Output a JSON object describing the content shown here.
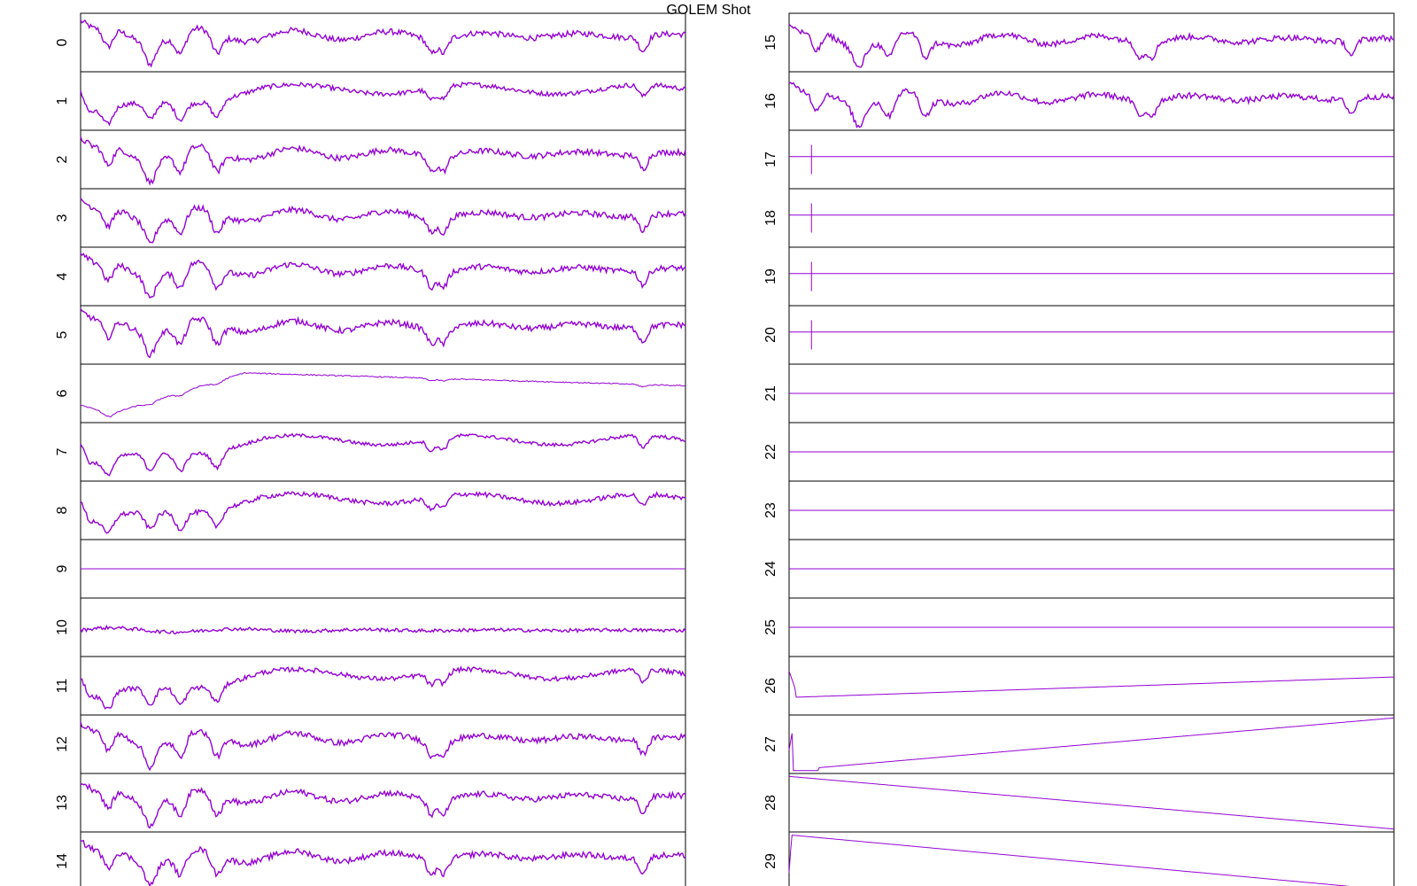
{
  "title": "GOLEM Shot",
  "series_color": "#9400d3",
  "chart_data": {
    "type": "line",
    "title": "GOLEM Shot",
    "grid": false,
    "legend": "none",
    "x_range": [
      0,
      100
    ],
    "y_range": [
      0,
      1
    ],
    "panels": [
      {
        "label": "0",
        "shape": "osc",
        "level": 0.62,
        "noise": 0.05
      },
      {
        "label": "1",
        "shape": "rise",
        "level": 0.55,
        "noise": 0.04
      },
      {
        "label": "2",
        "shape": "osc",
        "level": 0.6,
        "noise": 0.05
      },
      {
        "label": "3",
        "shape": "osc",
        "level": 0.55,
        "noise": 0.05
      },
      {
        "label": "4",
        "shape": "osc",
        "level": 0.62,
        "noise": 0.05
      },
      {
        "label": "5",
        "shape": "osc",
        "level": 0.65,
        "noise": 0.05
      },
      {
        "label": "6",
        "shape": "smooth",
        "level": 0.6,
        "noise": 0.01
      },
      {
        "label": "7",
        "shape": "rise",
        "level": 0.55,
        "noise": 0.03
      },
      {
        "label": "8",
        "shape": "rise",
        "level": 0.55,
        "noise": 0.04
      },
      {
        "label": "9",
        "shape": "flat",
        "level": 0.5,
        "noise": 0.0
      },
      {
        "label": "10",
        "shape": "band",
        "level": 0.45,
        "noise": 0.03
      },
      {
        "label": "11",
        "shape": "rise",
        "level": 0.5,
        "noise": 0.04
      },
      {
        "label": "12",
        "shape": "osc",
        "level": 0.6,
        "noise": 0.05
      },
      {
        "label": "13",
        "shape": "osc",
        "level": 0.6,
        "noise": 0.05
      },
      {
        "label": "14",
        "shape": "osc",
        "level": 0.58,
        "noise": 0.05
      },
      {
        "label": "15",
        "shape": "osc",
        "level": 0.55,
        "noise": 0.05
      },
      {
        "label": "16",
        "shape": "osc",
        "level": 0.55,
        "noise": 0.05
      },
      {
        "label": "17",
        "shape": "spike",
        "level": 0.55,
        "noise": 0.0
      },
      {
        "label": "18",
        "shape": "spike",
        "level": 0.55,
        "noise": 0.0
      },
      {
        "label": "19",
        "shape": "spike",
        "level": 0.55,
        "noise": 0.0
      },
      {
        "label": "20",
        "shape": "spike",
        "level": 0.55,
        "noise": 0.0
      },
      {
        "label": "21",
        "shape": "flat",
        "level": 0.5,
        "noise": 0.0
      },
      {
        "label": "22",
        "shape": "flat",
        "level": 0.5,
        "noise": 0.0
      },
      {
        "label": "23",
        "shape": "flat",
        "level": 0.5,
        "noise": 0.0
      },
      {
        "label": "24",
        "shape": "flat",
        "level": 0.5,
        "noise": 0.0
      },
      {
        "label": "25",
        "shape": "flat",
        "level": 0.5,
        "noise": 0.0
      },
      {
        "label": "26",
        "shape": "drift",
        "level": 0.4,
        "noise": 0.0
      },
      {
        "label": "27",
        "shape": "ramp",
        "level": 0.0,
        "noise": 0.0
      },
      {
        "label": "28",
        "shape": "down",
        "level": 0.0,
        "noise": 0.0
      },
      {
        "label": "29",
        "shape": "down2",
        "level": 0.0,
        "noise": 0.0
      }
    ]
  }
}
